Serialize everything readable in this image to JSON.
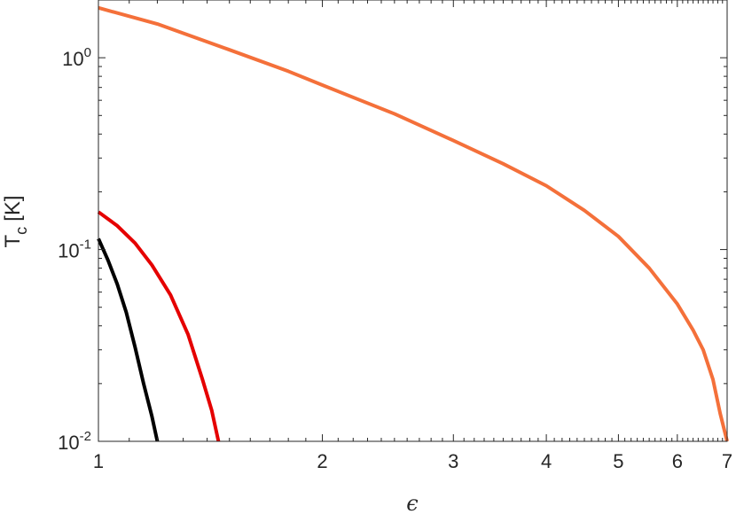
{
  "chart_data": {
    "type": "line",
    "title": "",
    "xlabel": "ϵ",
    "ylabel": {
      "main": "T",
      "sub": "c",
      "unit": "[K]"
    },
    "x_scale": "log",
    "y_scale": "log",
    "xlim": [
      1,
      7
    ],
    "ylim": [
      0.01,
      2
    ],
    "x_ticks": [
      {
        "value": 1,
        "label": "1"
      },
      {
        "value": 2,
        "label": "2"
      },
      {
        "value": 3,
        "label": "3"
      },
      {
        "value": 4,
        "label": "4"
      },
      {
        "value": 5,
        "label": "5"
      },
      {
        "value": 6,
        "label": "6"
      },
      {
        "value": 7,
        "label": "7"
      }
    ],
    "y_ticks": [
      {
        "value": 0.01,
        "base": "10",
        "exp": "-2"
      },
      {
        "value": 0.1,
        "base": "10",
        "exp": "-1"
      },
      {
        "value": 1,
        "base": "10",
        "exp": "0"
      }
    ],
    "grid": false,
    "legend": "none",
    "series": [
      {
        "color": "#000000",
        "points": [
          [
            1.0,
            0.114
          ],
          [
            1.03,
            0.088
          ],
          [
            1.06,
            0.066
          ],
          [
            1.09,
            0.047
          ],
          [
            1.12,
            0.031
          ],
          [
            1.15,
            0.02
          ],
          [
            1.18,
            0.0135
          ],
          [
            1.2,
            0.01
          ]
        ]
      },
      {
        "color": "#e50000",
        "points": [
          [
            1.0,
            0.157
          ],
          [
            1.06,
            0.133
          ],
          [
            1.12,
            0.108
          ],
          [
            1.18,
            0.083
          ],
          [
            1.25,
            0.058
          ],
          [
            1.32,
            0.036
          ],
          [
            1.38,
            0.021
          ],
          [
            1.42,
            0.0145
          ],
          [
            1.45,
            0.01
          ]
        ]
      },
      {
        "color": "#f4703a",
        "points": [
          [
            1.0,
            1.82
          ],
          [
            1.2,
            1.5
          ],
          [
            1.5,
            1.1
          ],
          [
            1.8,
            0.85
          ],
          [
            2.0,
            0.72
          ],
          [
            2.5,
            0.51
          ],
          [
            3.0,
            0.37
          ],
          [
            3.5,
            0.28
          ],
          [
            4.0,
            0.215
          ],
          [
            4.5,
            0.16
          ],
          [
            5.0,
            0.117
          ],
          [
            5.5,
            0.08
          ],
          [
            6.0,
            0.052
          ],
          [
            6.3,
            0.038
          ],
          [
            6.5,
            0.03
          ],
          [
            6.7,
            0.021
          ],
          [
            6.85,
            0.014
          ],
          [
            7.0,
            0.01
          ]
        ]
      }
    ]
  }
}
